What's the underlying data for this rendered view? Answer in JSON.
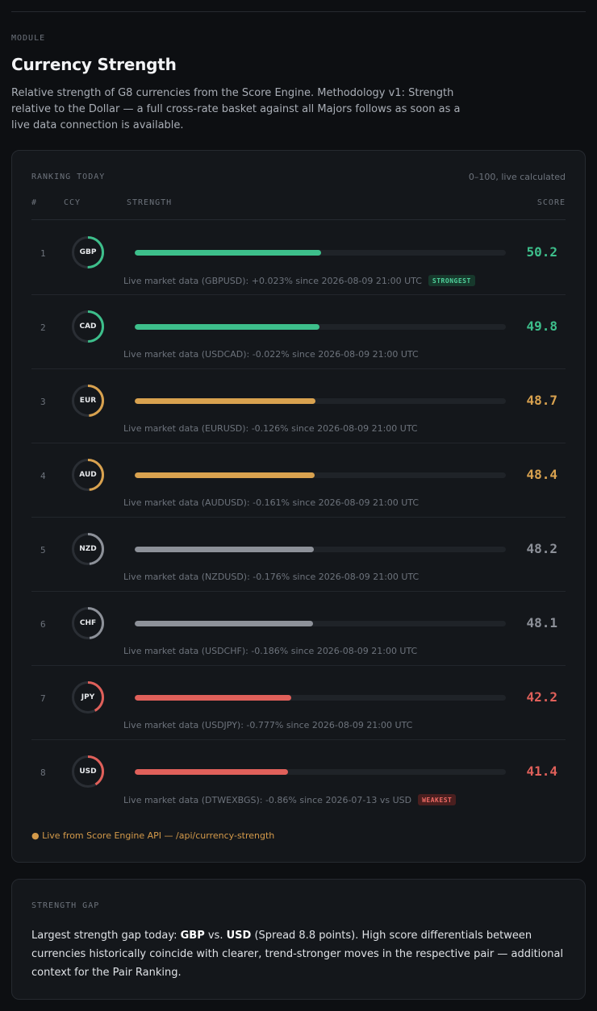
{
  "module_label": "MODULE",
  "title": "Currency Strength",
  "intro": "Relative strength of G8 currencies from the Score Engine. Methodology v1: Strength relative to the Dollar — a full cross-rate basket against all Majors follows as soon as a live data connection is available.",
  "ranking": {
    "heading": "RANKING TODAY",
    "note": "0–100, live calculated",
    "columns": {
      "rank": "#",
      "ccy": "CCY",
      "strength": "STRENGTH",
      "score": "SCORE"
    },
    "rows": [
      {
        "rank": "1",
        "ccy": "GBP",
        "score": "50.2",
        "strength": 50.2,
        "color": "#3dbf8b",
        "meta": "Live market data (GBPUSD): +0.023% since 2026-08-09 21:00 UTC",
        "badge": "STRONGEST"
      },
      {
        "rank": "2",
        "ccy": "CAD",
        "score": "49.8",
        "strength": 49.8,
        "color": "#3dbf8b",
        "meta": "Live market data (USDCAD): -0.022% since 2026-08-09 21:00 UTC",
        "badge": ""
      },
      {
        "rank": "3",
        "ccy": "EUR",
        "score": "48.7",
        "strength": 48.7,
        "color": "#d9a24f",
        "meta": "Live market data (EURUSD): -0.126% since 2026-08-09 21:00 UTC",
        "badge": ""
      },
      {
        "rank": "4",
        "ccy": "AUD",
        "score": "48.4",
        "strength": 48.4,
        "color": "#d9a24f",
        "meta": "Live market data (AUDUSD): -0.161% since 2026-08-09 21:00 UTC",
        "badge": ""
      },
      {
        "rank": "5",
        "ccy": "NZD",
        "score": "48.2",
        "strength": 48.2,
        "color": "#8d9199",
        "meta": "Live market data (NZDUSD): -0.176% since 2026-08-09 21:00 UTC",
        "badge": ""
      },
      {
        "rank": "6",
        "ccy": "CHF",
        "score": "48.1",
        "strength": 48.1,
        "color": "#8d9199",
        "meta": "Live market data (USDCHF): -0.186% since 2026-08-09 21:00 UTC",
        "badge": ""
      },
      {
        "rank": "7",
        "ccy": "JPY",
        "score": "42.2",
        "strength": 42.2,
        "color": "#e0605a",
        "meta": "Live market data (USDJPY): -0.777% since 2026-08-09 21:00 UTC",
        "badge": ""
      },
      {
        "rank": "8",
        "ccy": "USD",
        "score": "41.4",
        "strength": 41.4,
        "color": "#e0605a",
        "meta": "Live market data (DTWEXBGS): -0.86% since 2026-07-13 vs USD",
        "badge": "WEAKEST"
      }
    ],
    "footer": "● Live from Score Engine API — /api/currency-strength"
  },
  "gap": {
    "heading": "STRENGTH GAP",
    "lead": "Largest strength gap today: ",
    "strong": "GBP",
    "vs": " vs. ",
    "weak": "USD",
    "rest": " (Spread 8.8 points). High score differentials between currencies historically coincide with clearer, trend-stronger moves in the respective pair — additional context for the Pair Ranking."
  },
  "badge_styles": {
    "STRONGEST": {
      "bg": "#17392c",
      "fg": "#4fd19b"
    },
    "WEAKEST": {
      "bg": "#4a1f1f",
      "fg": "#ee6a64"
    }
  }
}
